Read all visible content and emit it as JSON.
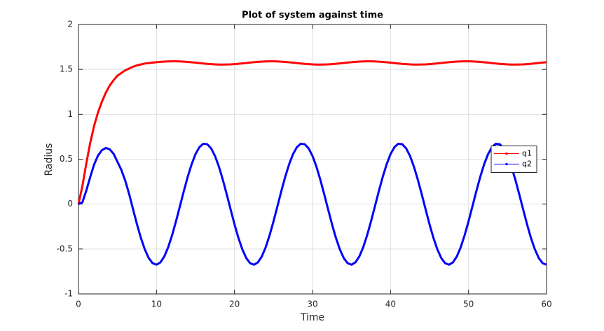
{
  "chart_data": {
    "type": "line",
    "title": "Plot of system against time",
    "xlabel": "Time",
    "ylabel": "Radius",
    "x": [
      0,
      0.5,
      1,
      1.5,
      2,
      2.5,
      3,
      3.5,
      4,
      4.5,
      5,
      5.5,
      6,
      6.5,
      7,
      7.5,
      8,
      8.5,
      9,
      9.5,
      10,
      10.5,
      11,
      11.5,
      12,
      12.5,
      13,
      13.5,
      14,
      14.5,
      15,
      15.5,
      16,
      16.5,
      17,
      17.5,
      18,
      18.5,
      19,
      19.5,
      20,
      20.5,
      21,
      21.5,
      22,
      22.5,
      23,
      23.5,
      24,
      24.5,
      25,
      25.5,
      26,
      26.5,
      27,
      27.5,
      28,
      28.5,
      29,
      29.5,
      30,
      30.5,
      31,
      31.5,
      32,
      32.5,
      33,
      33.5,
      34,
      34.5,
      35,
      35.5,
      36,
      36.5,
      37,
      37.5,
      38,
      38.5,
      39,
      39.5,
      40,
      40.5,
      41,
      41.5,
      42,
      42.5,
      43,
      43.5,
      44,
      44.5,
      45,
      45.5,
      46,
      46.5,
      47,
      47.5,
      48,
      48.5,
      49,
      49.5,
      50,
      50.5,
      51,
      51.5,
      52,
      52.5,
      53,
      53.5,
      54,
      54.5,
      55,
      55.5,
      56,
      56.5,
      57,
      57.5,
      58,
      58.5,
      59,
      59.5,
      60
    ],
    "series": [
      {
        "name": "q1",
        "color": "#ff0000",
        "values": [
          0,
          0.2,
          0.45,
          0.68,
          0.87,
          1.02,
          1.14,
          1.24,
          1.32,
          1.38,
          1.43,
          1.46,
          1.49,
          1.51,
          1.53,
          1.545,
          1.555,
          1.565,
          1.57,
          1.575,
          1.58,
          1.584,
          1.587,
          1.589,
          1.59,
          1.59,
          1.589,
          1.586,
          1.583,
          1.579,
          1.575,
          1.57,
          1.566,
          1.562,
          1.559,
          1.556,
          1.554,
          1.554,
          1.555,
          1.556,
          1.559,
          1.563,
          1.567,
          1.571,
          1.576,
          1.58,
          1.584,
          1.587,
          1.589,
          1.59,
          1.59,
          1.589,
          1.586,
          1.583,
          1.579,
          1.575,
          1.57,
          1.566,
          1.562,
          1.559,
          1.556,
          1.554,
          1.554,
          1.555,
          1.556,
          1.559,
          1.563,
          1.567,
          1.571,
          1.576,
          1.58,
          1.584,
          1.587,
          1.589,
          1.59,
          1.59,
          1.589,
          1.586,
          1.583,
          1.579,
          1.575,
          1.57,
          1.566,
          1.562,
          1.559,
          1.556,
          1.554,
          1.554,
          1.555,
          1.556,
          1.559,
          1.563,
          1.567,
          1.571,
          1.576,
          1.58,
          1.584,
          1.587,
          1.589,
          1.59,
          1.59,
          1.589,
          1.586,
          1.583,
          1.579,
          1.575,
          1.57,
          1.566,
          1.562,
          1.559,
          1.556,
          1.554,
          1.554,
          1.555,
          1.556,
          1.559,
          1.563,
          1.567,
          1.571,
          1.576,
          1.58
        ]
      },
      {
        "name": "q2",
        "color": "#0000ff",
        "values": [
          0,
          0.02,
          0.15,
          0.3,
          0.44,
          0.54,
          0.6,
          0.625,
          0.61,
          0.56,
          0.47,
          0.38,
          0.26,
          0.11,
          -0.059,
          -0.225,
          -0.376,
          -0.503,
          -0.6,
          -0.658,
          -0.675,
          -0.649,
          -0.583,
          -0.48,
          -0.347,
          -0.192,
          -0.025,
          0.143,
          0.303,
          0.443,
          0.556,
          0.634,
          0.672,
          0.667,
          0.621,
          0.536,
          0.417,
          0.272,
          0.11,
          -0.059,
          -0.225,
          -0.376,
          -0.503,
          -0.6,
          -0.658,
          -0.675,
          -0.649,
          -0.583,
          -0.48,
          -0.347,
          -0.192,
          -0.025,
          0.143,
          0.303,
          0.443,
          0.556,
          0.634,
          0.672,
          0.667,
          0.621,
          0.536,
          0.417,
          0.272,
          0.11,
          -0.059,
          -0.225,
          -0.376,
          -0.503,
          -0.6,
          -0.658,
          -0.675,
          -0.649,
          -0.583,
          -0.48,
          -0.347,
          -0.192,
          -0.025,
          0.143,
          0.303,
          0.443,
          0.556,
          0.634,
          0.672,
          0.667,
          0.621,
          0.536,
          0.417,
          0.272,
          0.11,
          -0.059,
          -0.225,
          -0.376,
          -0.503,
          -0.6,
          -0.658,
          -0.675,
          -0.649,
          -0.583,
          -0.48,
          -0.347,
          -0.192,
          -0.025,
          0.143,
          0.303,
          0.443,
          0.556,
          0.634,
          0.672,
          0.667,
          0.621,
          0.536,
          0.417,
          0.272,
          0.11,
          -0.059,
          -0.225,
          -0.376,
          -0.503,
          -0.6,
          -0.658,
          -0.675
        ]
      }
    ],
    "xlim": [
      0,
      60
    ],
    "xticks": [
      0,
      10,
      20,
      30,
      40,
      50,
      60
    ],
    "ylim": [
      -1,
      2
    ],
    "yticks": [
      -1,
      -0.5,
      0,
      0.5,
      1,
      1.5,
      2
    ],
    "grid": true,
    "legend": "east"
  }
}
